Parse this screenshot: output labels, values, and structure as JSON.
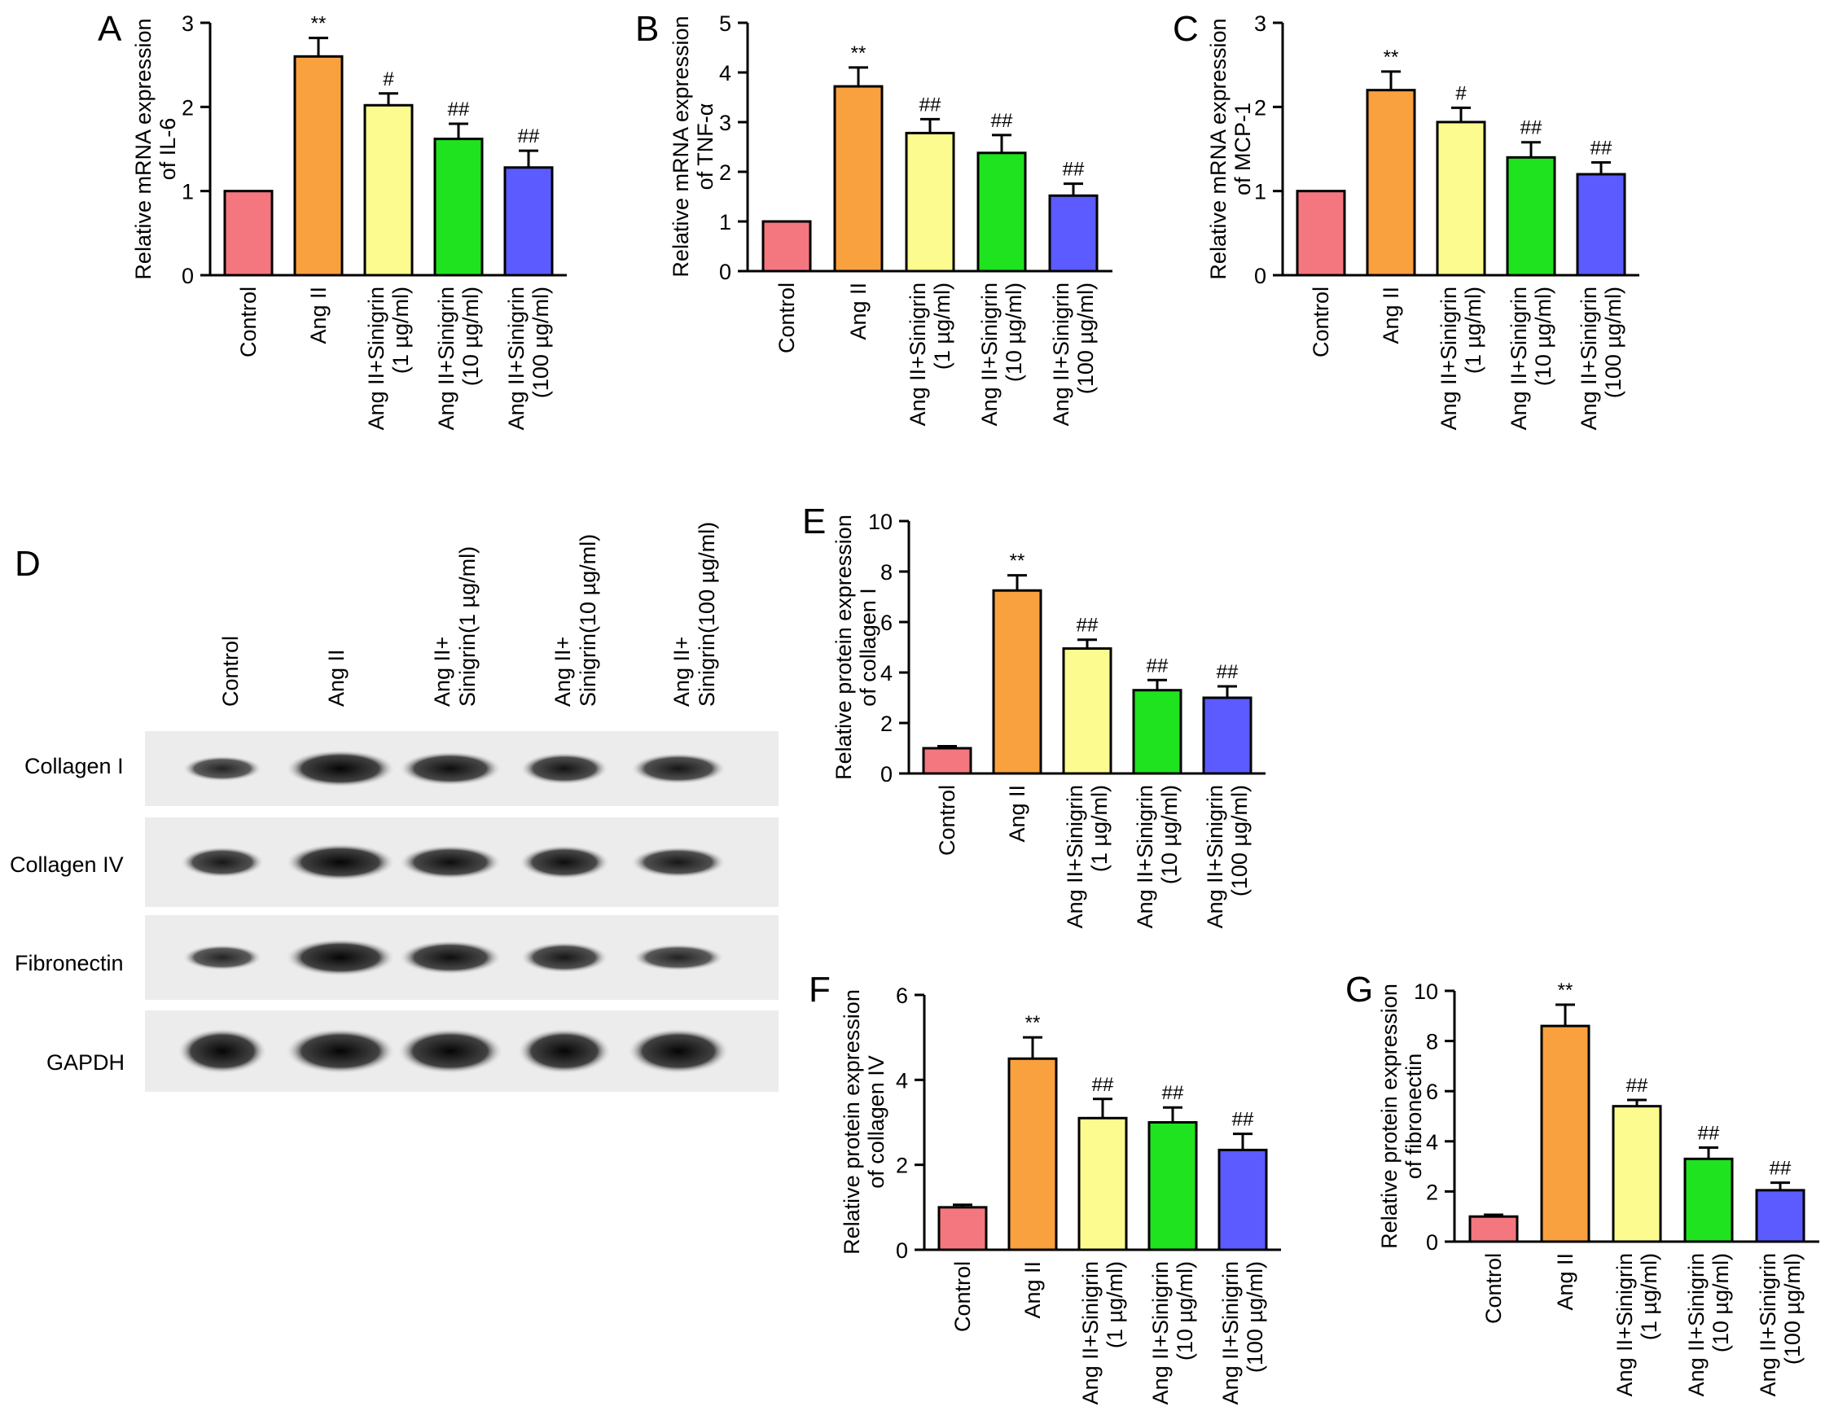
{
  "figure": {
    "categories": [
      "Control",
      "Ang II",
      "Ang II+Sinigrin\n(1 µg/ml)",
      "Ang II+Sinigrin\n(10 µg/ml)",
      "Ang II+Sinigrin\n(100 µg/ml)"
    ],
    "bar_colors": [
      "#f4777f",
      "#f9a03f",
      "#fbfb8f",
      "#1ee31e",
      "#5b5bff"
    ]
  },
  "chart_data": [
    {
      "panel": "A",
      "type": "bar",
      "categories": [
        "Control",
        "Ang II",
        "Ang II+Sinigrin (1 µg/ml)",
        "Ang II+Sinigrin (10 µg/ml)",
        "Ang II+Sinigrin (100 µg/ml)"
      ],
      "values": [
        1.0,
        2.6,
        2.02,
        1.62,
        1.28
      ],
      "errors": [
        0,
        0.22,
        0.14,
        0.18,
        0.2
      ],
      "annotations": [
        "",
        "**",
        "#",
        "##",
        "##"
      ],
      "ylabel": "Relative mRNA expression\nof IL-6",
      "ylim": [
        0,
        3
      ],
      "yticks": [
        0,
        1,
        2,
        3
      ]
    },
    {
      "panel": "B",
      "type": "bar",
      "categories": [
        "Control",
        "Ang II",
        "Ang II+Sinigrin (1 µg/ml)",
        "Ang II+Sinigrin (10 µg/ml)",
        "Ang II+Sinigrin (100 µg/ml)"
      ],
      "values": [
        1.0,
        3.72,
        2.78,
        2.38,
        1.52
      ],
      "errors": [
        0,
        0.38,
        0.28,
        0.36,
        0.24
      ],
      "annotations": [
        "",
        "**",
        "##",
        "##",
        "##"
      ],
      "ylabel": "Relative mRNA expression\nof TNF-α",
      "ylim": [
        0,
        5
      ],
      "yticks": [
        0,
        1,
        2,
        3,
        4,
        5
      ]
    },
    {
      "panel": "C",
      "type": "bar",
      "categories": [
        "Control",
        "Ang II",
        "Ang II+Sinigrin (1 µg/ml)",
        "Ang II+Sinigrin (10 µg/ml)",
        "Ang II+Sinigrin (100 µg/ml)"
      ],
      "values": [
        1.0,
        2.2,
        1.82,
        1.4,
        1.2
      ],
      "errors": [
        0,
        0.22,
        0.17,
        0.18,
        0.14
      ],
      "annotations": [
        "",
        "**",
        "#",
        "##",
        "##"
      ],
      "ylabel": "Relative mRNA expression\nof MCP-1",
      "ylim": [
        0,
        3
      ],
      "yticks": [
        0,
        1,
        2,
        3
      ]
    },
    {
      "panel": "E",
      "type": "bar",
      "categories": [
        "Control",
        "Ang II",
        "Ang II+Sinigrin (1 µg/ml)",
        "Ang II+Sinigrin (10 µg/ml)",
        "Ang II+Sinigrin (100 µg/ml)"
      ],
      "values": [
        1.0,
        7.25,
        4.95,
        3.3,
        3.0
      ],
      "errors": [
        0.08,
        0.6,
        0.35,
        0.4,
        0.45
      ],
      "annotations": [
        "",
        "**",
        "##",
        "##",
        "##"
      ],
      "ylabel": "Relative protein expression\nof collagen I",
      "ylim": [
        0,
        10
      ],
      "yticks": [
        0,
        2,
        4,
        6,
        8,
        10
      ]
    },
    {
      "panel": "F",
      "type": "bar",
      "categories": [
        "Control",
        "Ang II",
        "Ang II+Sinigrin (1 µg/ml)",
        "Ang II+Sinigrin (10 µg/ml)",
        "Ang II+Sinigrin (100 µg/ml)"
      ],
      "values": [
        1.0,
        4.5,
        3.1,
        3.0,
        2.35
      ],
      "errors": [
        0.06,
        0.5,
        0.45,
        0.35,
        0.38
      ],
      "annotations": [
        "",
        "**",
        "##",
        "##",
        "##"
      ],
      "ylabel": "Relative protein expression\nof collagen IV",
      "ylim": [
        0,
        6
      ],
      "yticks": [
        0,
        2,
        4,
        6
      ]
    },
    {
      "panel": "G",
      "type": "bar",
      "categories": [
        "Control",
        "Ang II",
        "Ang II+Sinigrin (1 µg/ml)",
        "Ang II+Sinigrin (10 µg/ml)",
        "Ang II+Sinigrin (100 µg/ml)"
      ],
      "values": [
        1.0,
        8.6,
        5.4,
        3.3,
        2.05
      ],
      "errors": [
        0.07,
        0.85,
        0.25,
        0.45,
        0.3
      ],
      "annotations": [
        "",
        "**",
        "##",
        "##",
        "##"
      ],
      "ylabel": "Relative protein expression\nof fibronectin",
      "ylim": [
        0,
        10
      ],
      "yticks": [
        0,
        2,
        4,
        6,
        8,
        10
      ]
    }
  ],
  "blot": {
    "panel": "D",
    "lane_headers": [
      "Control",
      "Ang II",
      "Ang II+\nSinigrin(1 µg/ml)",
      "Ang II+\nSinigrin(10 µg/ml)",
      "Ang II+\nSinigrin(100 µg/ml)"
    ],
    "rows": [
      {
        "label": "Collagen I",
        "intensity": [
          0.45,
          1.0,
          0.85,
          0.75,
          0.7
        ]
      },
      {
        "label": "Collagen IV",
        "intensity": [
          0.7,
          1.0,
          0.85,
          0.85,
          0.7
        ]
      },
      {
        "label": "Fibronectin",
        "intensity": [
          0.45,
          1.0,
          0.85,
          0.7,
          0.5
        ]
      },
      {
        "label": "GAPDH",
        "intensity": [
          1.0,
          1.0,
          1.0,
          1.0,
          1.0
        ]
      }
    ]
  }
}
